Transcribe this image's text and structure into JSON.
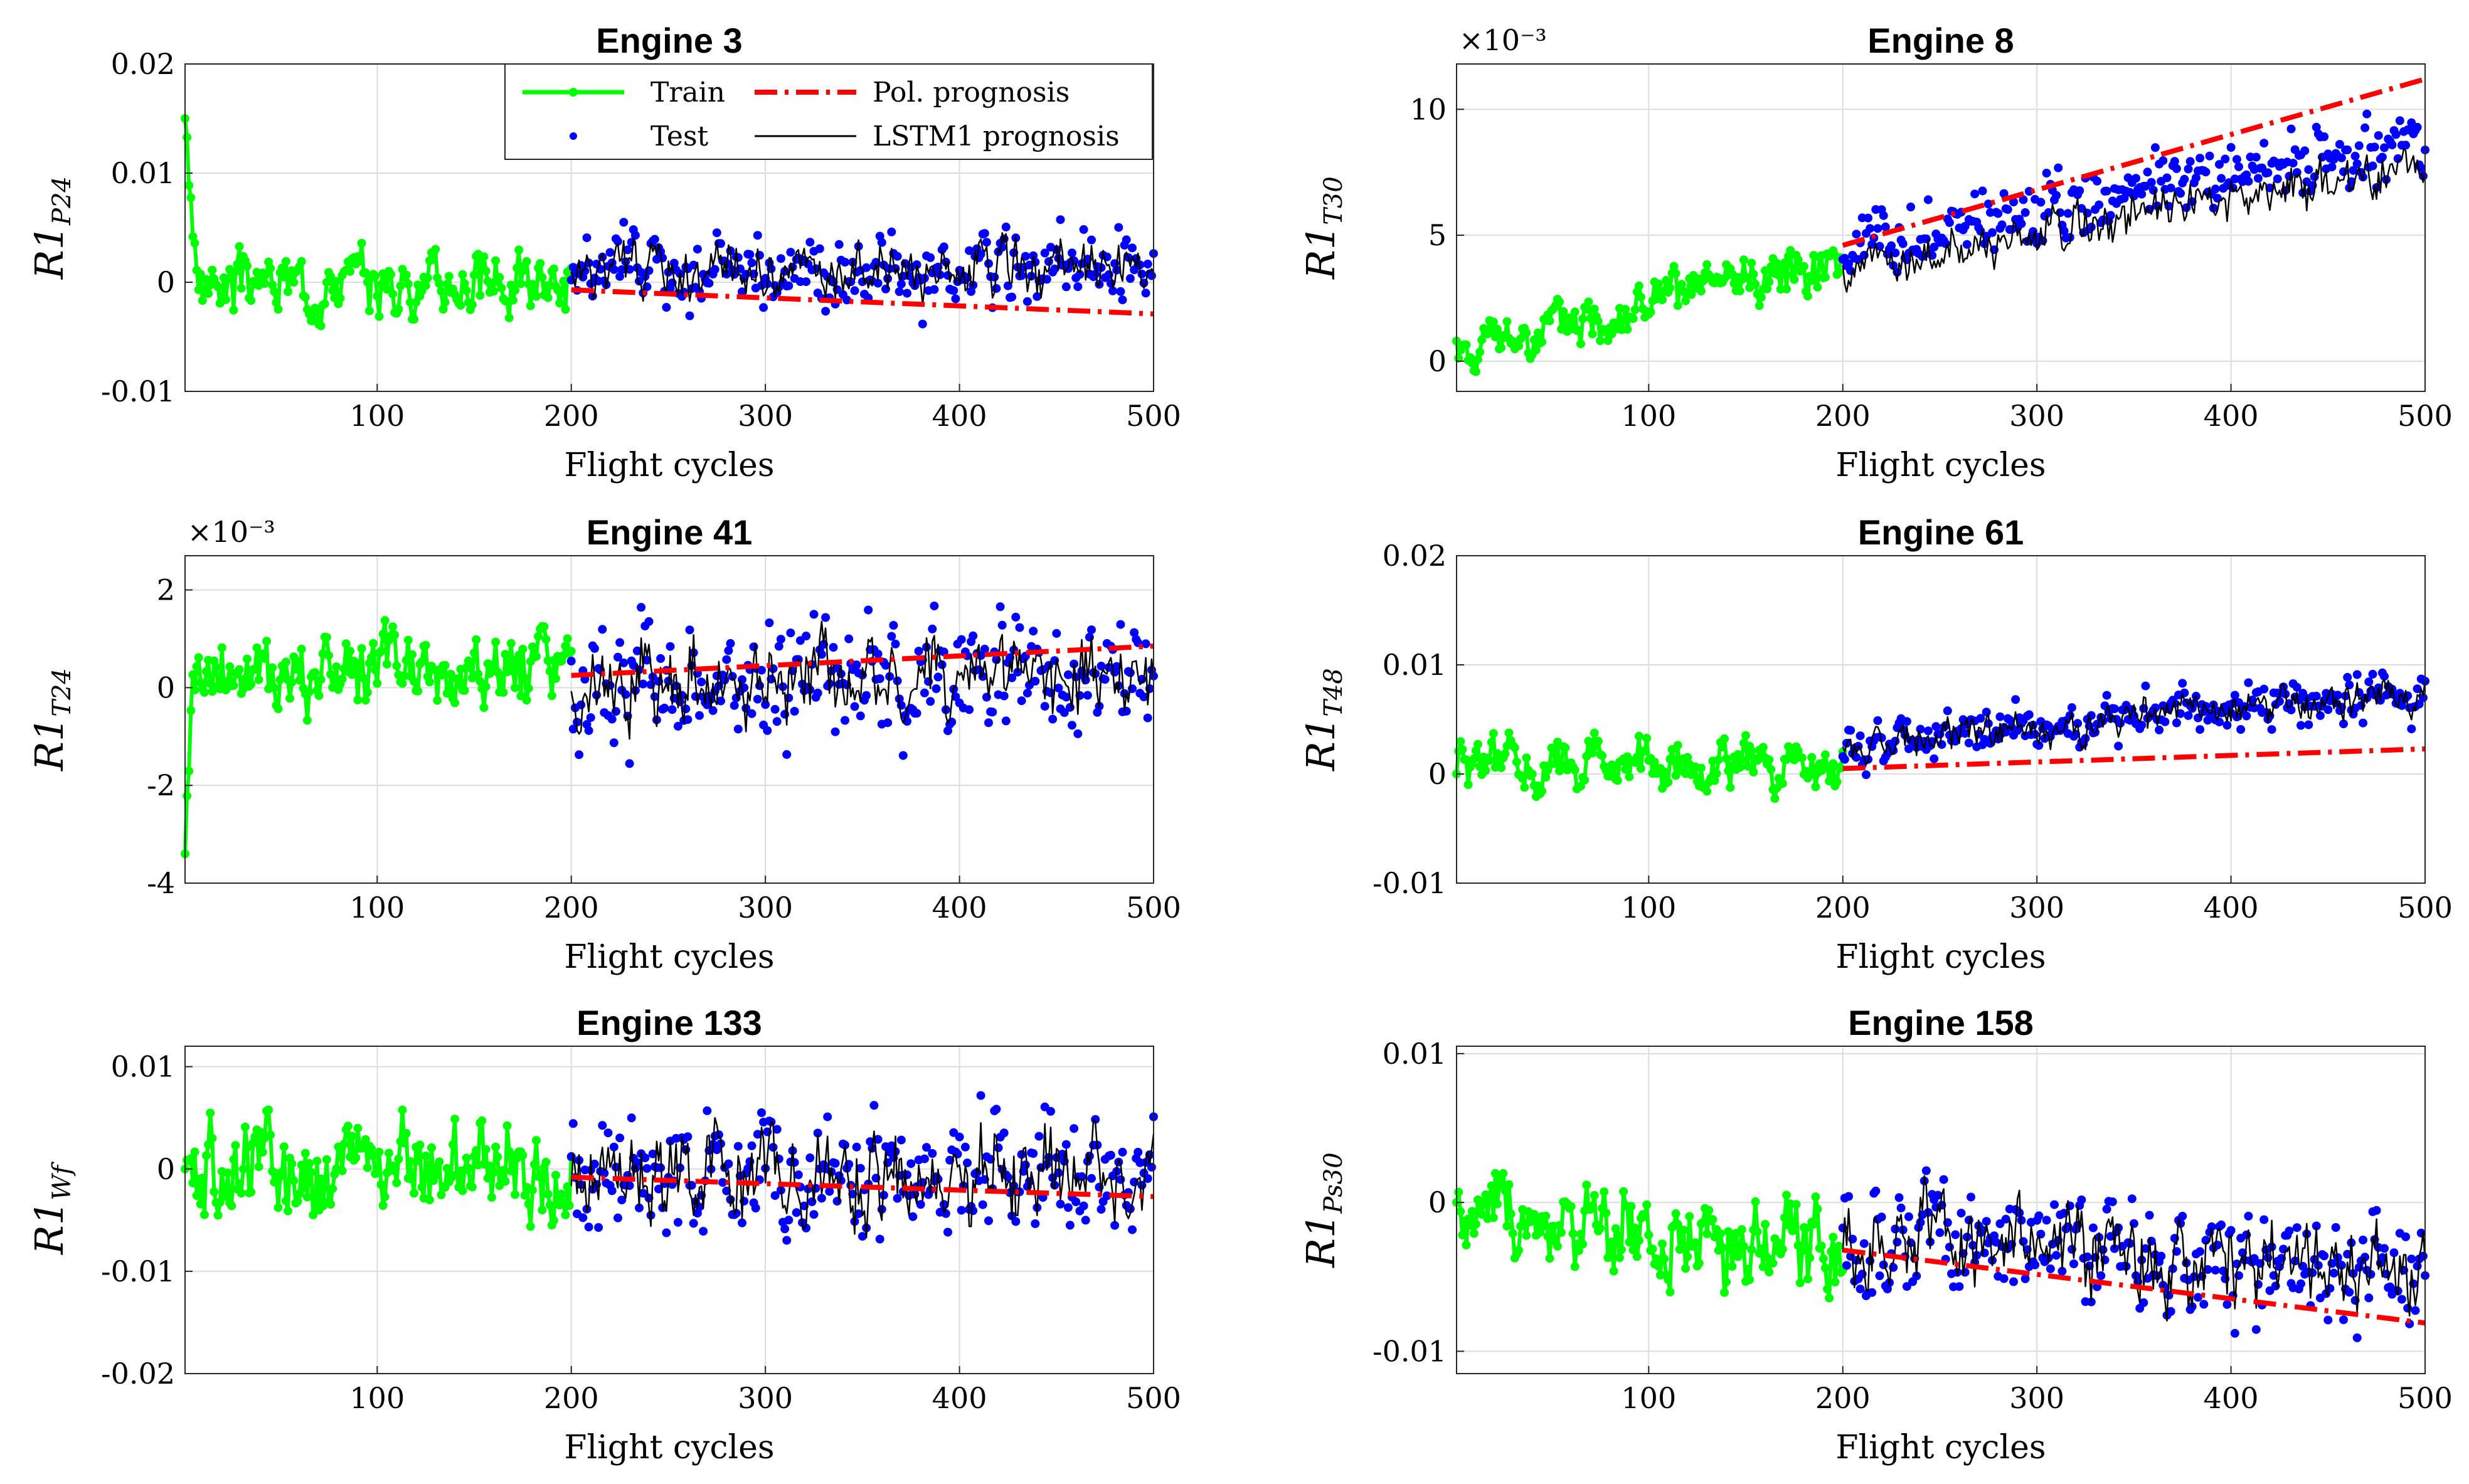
{
  "figure": {
    "xlabel": "Flight cycles",
    "legend": {
      "train": "Train",
      "test": "Test",
      "pol": "Pol. prognosis",
      "lstm": "LSTM1 prognosis"
    },
    "colors": {
      "train": "#00ff00",
      "test": "#0000ff",
      "pol": "#ff0000",
      "lstm": "#000000",
      "grid": "#dcdcdc"
    }
  },
  "chart_data": [
    {
      "type": "line",
      "title": "Engine 3",
      "ylabel_base": "R1",
      "ylabel_sub": "P24",
      "xlim": [
        1,
        500
      ],
      "ylim": [
        -0.01,
        0.02
      ],
      "xticks": [
        "100",
        "200",
        "300",
        "400",
        "500"
      ],
      "yticks": [
        -0.01,
        0,
        0.01,
        0.02
      ],
      "ytick_labels": [
        "-0.01",
        "0",
        "0.01",
        "0.02"
      ],
      "exponent": "",
      "legend": true,
      "series": {
        "train": {
          "start": 0.015,
          "init_amp": 0.006,
          "init_len": 6,
          "base_start": 0,
          "base_end": 0,
          "amp": 0.0025,
          "seed": 3
        },
        "lstm": {
          "base_start": 0.001,
          "base_end": 0.001,
          "amp": 0.0025,
          "seed": 31
        },
        "test": {
          "scatter": 0.0018,
          "seed": 33
        },
        "pol": {
          "x": [
            200,
            500
          ],
          "y": [
            -0.0007,
            -0.0029
          ]
        }
      }
    },
    {
      "type": "line",
      "title": "Engine 8",
      "ylabel_base": "R1",
      "ylabel_sub": "T30",
      "xlim": [
        1,
        500
      ],
      "ylim": [
        -1.2,
        11.8
      ],
      "xticks": [
        "100",
        "200",
        "300",
        "400",
        "500"
      ],
      "yticks": [
        0,
        5,
        10
      ],
      "ytick_labels": [
        "0",
        "5",
        "10"
      ],
      "exponent": "×10⁻³",
      "legend": false,
      "series": {
        "train": {
          "start": 0.8,
          "init_amp": 0,
          "init_len": 0,
          "base_start": 0.3,
          "base_end": 4.2,
          "amp": 0.9,
          "seed": 8
        },
        "lstm": {
          "base_start": 3.6,
          "base_end": 7.8,
          "amp": 0.9,
          "seed": 81
        },
        "test": {
          "offset": 0.9,
          "scatter": 0.8,
          "seed": 83
        },
        "pol": {
          "x": [
            200,
            500
          ],
          "y": [
            4.6,
            11.2
          ]
        }
      }
    },
    {
      "type": "line",
      "title": "Engine 41",
      "ylabel_base": "R1",
      "ylabel_sub": "T24",
      "xlim": [
        1,
        500
      ],
      "ylim": [
        -4,
        2.7
      ],
      "xticks": [
        "100",
        "200",
        "300",
        "400",
        "500"
      ],
      "yticks": [
        -4,
        -2,
        0,
        2
      ],
      "ytick_labels": [
        "-4",
        "-2",
        "0",
        "2"
      ],
      "exponent": "×10⁻³",
      "legend": false,
      "series": {
        "train": {
          "start": -3.4,
          "init_amp": 1.2,
          "init_len": 4,
          "base_start": 0.2,
          "base_end": 0.3,
          "amp": 0.75,
          "seed": 41
        },
        "lstm": {
          "base_start": 0.2,
          "base_end": 0.2,
          "amp": 0.8,
          "seed": 411
        },
        "test": {
          "scatter": 0.7,
          "seed": 413
        },
        "pol": {
          "x": [
            200,
            500
          ],
          "y": [
            0.25,
            0.85
          ]
        }
      }
    },
    {
      "type": "line",
      "title": "Engine 61",
      "ylabel_base": "R1",
      "ylabel_sub": "T48",
      "xlim": [
        1,
        500
      ],
      "ylim": [
        -0.01,
        0.02
      ],
      "xticks": [
        "100",
        "200",
        "300",
        "400",
        "500"
      ],
      "yticks": [
        -0.01,
        0,
        0.01,
        0.02
      ],
      "ytick_labels": [
        "-0.01",
        "0",
        "0.01",
        "0.02"
      ],
      "exponent": "",
      "legend": false,
      "series": {
        "train": {
          "start": 0,
          "init_amp": 0,
          "init_len": 0,
          "base_start": 0.0005,
          "base_end": 0.001,
          "amp": 0.0022,
          "seed": 61
        },
        "lstm": {
          "base_start": 0.0025,
          "base_end": 0.0075,
          "amp": 0.0017,
          "seed": 611
        },
        "test": {
          "scatter": 0.0012,
          "seed": 613
        },
        "pol": {
          "x": [
            200,
            500
          ],
          "y": [
            0.0005,
            0.0023
          ]
        }
      }
    },
    {
      "type": "line",
      "title": "Engine 133",
      "ylabel_base": "R1",
      "ylabel_sub": "Wf",
      "xlim": [
        1,
        500
      ],
      "ylim": [
        -0.02,
        0.012
      ],
      "xticks": [
        "100",
        "200",
        "300",
        "400",
        "500"
      ],
      "yticks": [
        -0.02,
        -0.01,
        0,
        0.01
      ],
      "ytick_labels": [
        "-0.02",
        "-0.01",
        "0",
        "0.01"
      ],
      "exponent": "",
      "legend": false,
      "series": {
        "train": {
          "start": 0,
          "init_amp": 0,
          "init_len": 0,
          "base_start": 0,
          "base_end": 0,
          "amp": 0.0045,
          "seed": 133
        },
        "lstm": {
          "base_start": 0,
          "base_end": -0.0005,
          "amp": 0.0045,
          "seed": 1331
        },
        "test": {
          "scatter": 0.003,
          "seed": 1333
        },
        "pol": {
          "x": [
            200,
            500
          ],
          "y": [
            -0.0008,
            -0.0027
          ]
        }
      }
    },
    {
      "type": "line",
      "title": "Engine 158",
      "ylabel_base": "R1",
      "ylabel_sub": "Ps30",
      "xlim": [
        1,
        500
      ],
      "ylim": [
        -0.0115,
        0.0105
      ],
      "xticks": [
        "100",
        "200",
        "300",
        "400",
        "500"
      ],
      "yticks": [
        -0.01,
        0,
        0.01
      ],
      "ytick_labels": [
        "-0.01",
        "0",
        "0.01"
      ],
      "exponent": "",
      "legend": false,
      "series": {
        "train": {
          "start": 0,
          "init_amp": 0,
          "init_len": 0,
          "base_start": -0.0005,
          "base_end": -0.0035,
          "amp": 0.0028,
          "seed": 158
        },
        "lstm": {
          "base_start": -0.002,
          "base_end": -0.0055,
          "amp": 0.0028,
          "seed": 1581
        },
        "test": {
          "scatter": 0.0018,
          "seed": 1583
        },
        "pol": {
          "x": [
            200,
            500
          ],
          "y": [
            -0.0032,
            -0.0081
          ]
        }
      }
    }
  ]
}
